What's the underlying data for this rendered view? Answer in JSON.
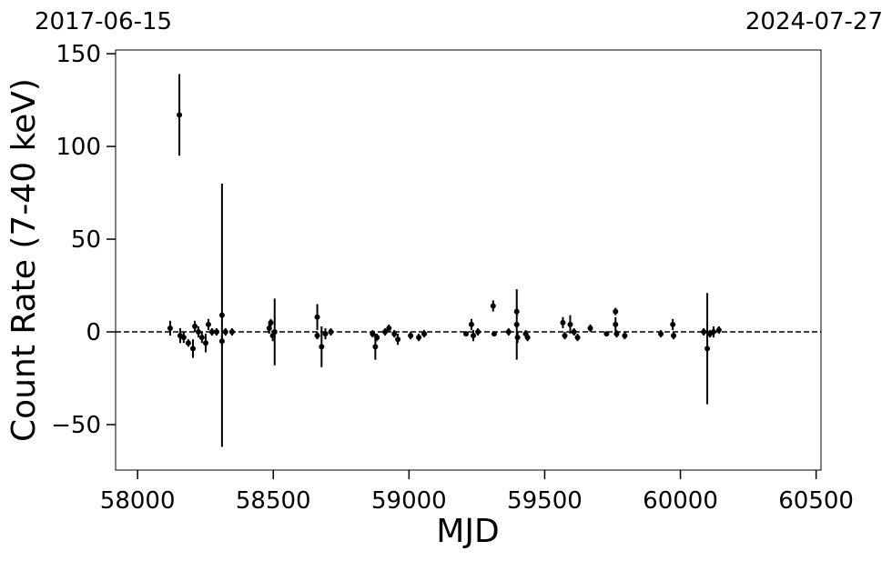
{
  "chart_data": {
    "type": "scatter",
    "x_label": "MJD",
    "y_label": "Count Rate (7-40 keV)",
    "date_labels": [
      "2017-06-15",
      "2024-07-27"
    ],
    "xlim": [
      57919,
      60518
    ],
    "ylim": [
      -74.5,
      152
    ],
    "xticks": [
      58000,
      58500,
      59000,
      59500,
      60000,
      60500
    ],
    "yticks": [
      {
        "value": -50,
        "label": "−50"
      },
      0,
      50,
      100,
      150
    ],
    "hline": 0,
    "color": "#000000",
    "x": [
      58120,
      58154,
      58157,
      58170,
      58187,
      58204,
      58211,
      58224,
      58237,
      58251,
      58261,
      58274,
      58291,
      58311,
      58311,
      58324,
      58348,
      58485,
      58491,
      58498,
      58505,
      58662,
      58662,
      58678,
      58692,
      58712,
      58866,
      58876,
      58882,
      58912,
      58926,
      58946,
      58959,
      59006,
      59036,
      59056,
      59210,
      59230,
      59237,
      59254,
      59310,
      59314,
      59367,
      59397,
      59397,
      59400,
      59430,
      59437,
      59567,
      59574,
      59594,
      59608,
      59621,
      59668,
      59728,
      59761,
      59761,
      59765,
      59795,
      59928,
      59972,
      59975,
      60086,
      60099,
      60109,
      60122,
      60142
    ],
    "values": [
      2,
      117,
      -2,
      -3,
      -6,
      -9,
      3,
      0,
      -3,
      -6,
      4,
      0,
      0,
      9,
      -5,
      0,
      0,
      2,
      5,
      -2,
      0,
      8,
      -2,
      -8,
      -1,
      0,
      -1,
      -8,
      -3,
      0,
      2,
      -1,
      -4,
      -2,
      -3,
      -1,
      -1,
      4,
      -2,
      0,
      14,
      -1,
      0,
      4,
      11,
      -3,
      -1,
      -3,
      5,
      -2,
      4,
      0,
      -3,
      2,
      -1,
      11,
      4,
      -1,
      -2,
      -1,
      4,
      -2,
      0,
      -9,
      -1,
      0,
      1
    ],
    "errors": [
      4,
      22,
      4,
      3,
      2,
      5,
      3,
      3,
      3,
      5,
      3,
      2,
      2,
      71,
      3,
      2,
      2,
      3,
      2,
      3,
      18,
      7,
      2,
      11,
      3,
      2,
      2,
      7,
      2,
      2,
      2,
      2,
      3,
      2,
      2,
      2,
      1,
      3,
      3,
      2,
      3,
      1,
      2,
      19,
      2,
      3,
      2,
      2,
      3,
      2,
      5,
      2,
      2,
      2,
      1,
      2,
      4,
      2,
      2,
      2,
      3,
      2,
      2,
      30,
      2,
      3,
      2
    ]
  }
}
